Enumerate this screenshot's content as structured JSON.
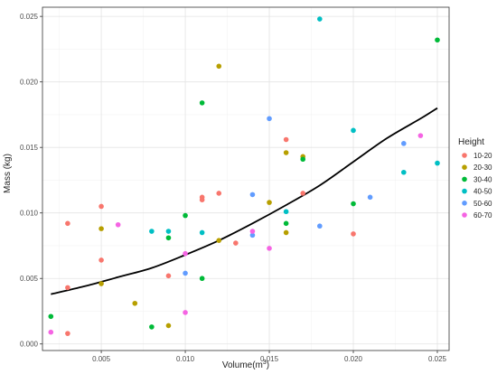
{
  "chart_data": {
    "type": "scatter",
    "title": "",
    "xlabel": "Volume(m",
    "xlabel_sup": "3",
    "xlabel_close": ")",
    "ylabel": "Mass (kg)",
    "xlim": [
      0.0015,
      0.0257
    ],
    "ylim": [
      -0.0005,
      0.0257
    ],
    "x_ticks": [
      0.005,
      0.01,
      0.015,
      0.02,
      0.025
    ],
    "x_tick_labels": [
      "0.005",
      "0.010",
      "0.015",
      "0.020",
      "0.025"
    ],
    "y_ticks": [
      0.0,
      0.005,
      0.01,
      0.015,
      0.02,
      0.025
    ],
    "y_tick_labels": [
      "0.000",
      "0.005",
      "0.010",
      "0.015",
      "0.020",
      "0.025"
    ],
    "grid": true,
    "legend": {
      "title": "Height",
      "position": "right"
    },
    "series": [
      {
        "name": "10-20",
        "color": "#F8766D",
        "points": [
          {
            "x": 0.003,
            "y": 0.0092
          },
          {
            "x": 0.003,
            "y": 0.0043
          },
          {
            "x": 0.003,
            "y": 0.0008
          },
          {
            "x": 0.005,
            "y": 0.0105
          },
          {
            "x": 0.005,
            "y": 0.0064
          },
          {
            "x": 0.009,
            "y": 0.0052
          },
          {
            "x": 0.011,
            "y": 0.0112
          },
          {
            "x": 0.011,
            "y": 0.011
          },
          {
            "x": 0.012,
            "y": 0.0115
          },
          {
            "x": 0.013,
            "y": 0.0077
          },
          {
            "x": 0.016,
            "y": 0.0156
          },
          {
            "x": 0.017,
            "y": 0.0115
          },
          {
            "x": 0.02,
            "y": 0.0084
          }
        ]
      },
      {
        "name": "20-30",
        "color": "#B79F00",
        "points": [
          {
            "x": 0.005,
            "y": 0.0088
          },
          {
            "x": 0.005,
            "y": 0.0046
          },
          {
            "x": 0.007,
            "y": 0.0031
          },
          {
            "x": 0.009,
            "y": 0.0014
          },
          {
            "x": 0.012,
            "y": 0.0212
          },
          {
            "x": 0.012,
            "y": 0.0079
          },
          {
            "x": 0.015,
            "y": 0.0108
          },
          {
            "x": 0.016,
            "y": 0.0146
          },
          {
            "x": 0.016,
            "y": 0.0085
          },
          {
            "x": 0.017,
            "y": 0.0143
          }
        ]
      },
      {
        "name": "30-40",
        "color": "#00BA38",
        "points": [
          {
            "x": 0.002,
            "y": 0.0021
          },
          {
            "x": 0.008,
            "y": 0.0013
          },
          {
            "x": 0.009,
            "y": 0.0081
          },
          {
            "x": 0.01,
            "y": 0.0098
          },
          {
            "x": 0.011,
            "y": 0.0184
          },
          {
            "x": 0.011,
            "y": 0.005
          },
          {
            "x": 0.016,
            "y": 0.0092
          },
          {
            "x": 0.017,
            "y": 0.0141
          },
          {
            "x": 0.02,
            "y": 0.0107
          },
          {
            "x": 0.025,
            "y": 0.0232
          }
        ]
      },
      {
        "name": "40-50",
        "color": "#00BFC4",
        "points": [
          {
            "x": 0.008,
            "y": 0.0086
          },
          {
            "x": 0.009,
            "y": 0.0086
          },
          {
            "x": 0.011,
            "y": 0.0085
          },
          {
            "x": 0.016,
            "y": 0.0101
          },
          {
            "x": 0.018,
            "y": 0.0248
          },
          {
            "x": 0.02,
            "y": 0.0163
          },
          {
            "x": 0.023,
            "y": 0.0131
          },
          {
            "x": 0.025,
            "y": 0.0138
          }
        ]
      },
      {
        "name": "50-60",
        "color": "#619CFF",
        "points": [
          {
            "x": 0.01,
            "y": 0.0054
          },
          {
            "x": 0.014,
            "y": 0.0114
          },
          {
            "x": 0.014,
            "y": 0.0083
          },
          {
            "x": 0.015,
            "y": 0.0172
          },
          {
            "x": 0.018,
            "y": 0.009
          },
          {
            "x": 0.021,
            "y": 0.0112
          },
          {
            "x": 0.023,
            "y": 0.0153
          }
        ]
      },
      {
        "name": "60-70",
        "color": "#F564E3",
        "points": [
          {
            "x": 0.002,
            "y": 0.0009
          },
          {
            "x": 0.006,
            "y": 0.0091
          },
          {
            "x": 0.01,
            "y": 0.0069
          },
          {
            "x": 0.01,
            "y": 0.0024
          },
          {
            "x": 0.014,
            "y": 0.0086
          },
          {
            "x": 0.015,
            "y": 0.0073
          },
          {
            "x": 0.024,
            "y": 0.0159
          }
        ]
      }
    ],
    "fit_line": {
      "color": "#000000",
      "points": [
        {
          "x": 0.002,
          "y": 0.0038
        },
        {
          "x": 0.004,
          "y": 0.0044
        },
        {
          "x": 0.006,
          "y": 0.0051
        },
        {
          "x": 0.008,
          "y": 0.0058
        },
        {
          "x": 0.01,
          "y": 0.0068
        },
        {
          "x": 0.012,
          "y": 0.0079
        },
        {
          "x": 0.014,
          "y": 0.0092
        },
        {
          "x": 0.016,
          "y": 0.0106
        },
        {
          "x": 0.018,
          "y": 0.0121
        },
        {
          "x": 0.02,
          "y": 0.0139
        },
        {
          "x": 0.022,
          "y": 0.0157
        },
        {
          "x": 0.024,
          "y": 0.0172
        },
        {
          "x": 0.025,
          "y": 0.018
        }
      ]
    }
  }
}
